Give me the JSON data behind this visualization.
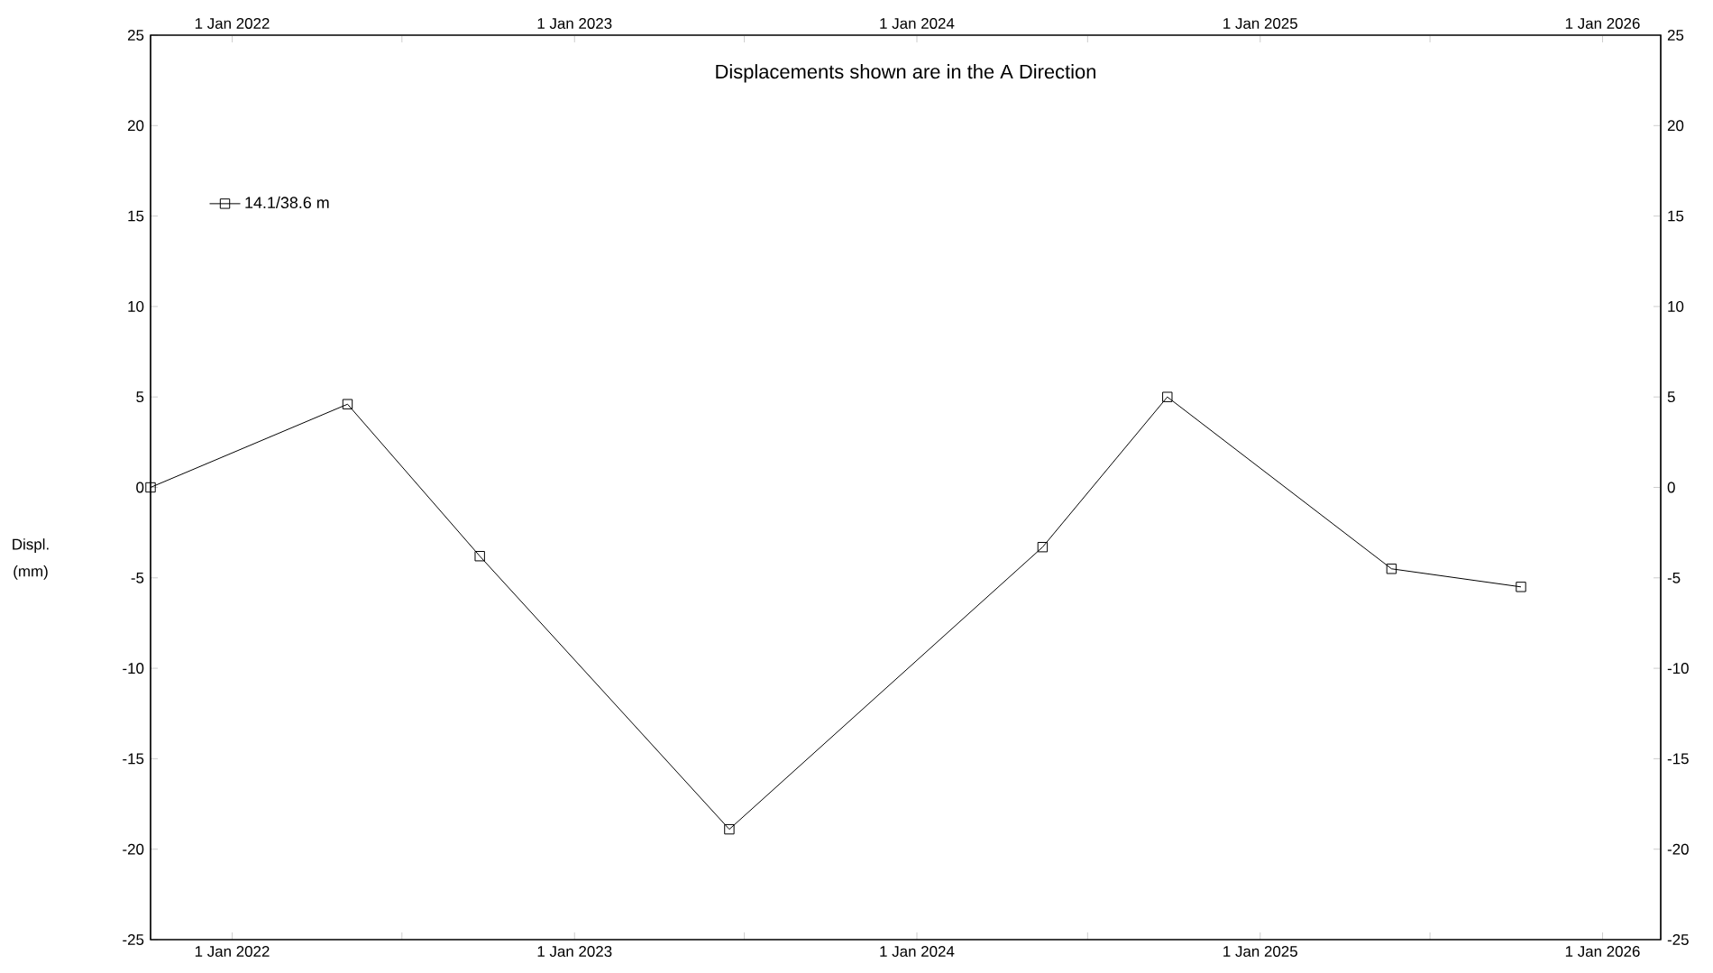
{
  "chart_data": {
    "type": "line",
    "title": "Displacements shown are in the  A Direction",
    "ylabel": "Displ. (mm)",
    "x": [
      "2021-10-06",
      "2022-05-04",
      "2022-09-22",
      "2023-06-15",
      "2024-05-14",
      "2024-09-24",
      "2025-05-21",
      "2025-10-06"
    ],
    "series": [
      {
        "name": "14.1/38.6 m",
        "color": "#000000",
        "values": [
          0,
          4.6,
          -3.8,
          -18.9,
          -3.3,
          5.0,
          -4.5,
          -5.5
        ]
      }
    ],
    "xlim": [
      "2021-10-06",
      "2026-03-04"
    ],
    "xticks": [
      {
        "value": "2022-01-01",
        "label": "1 Jan 2022"
      },
      {
        "value": "2022-07-01",
        "label": null
      },
      {
        "value": "2023-01-01",
        "label": "1 Jan 2023"
      },
      {
        "value": "2023-07-01",
        "label": null
      },
      {
        "value": "2024-01-01",
        "label": "1 Jan 2024"
      },
      {
        "value": "2024-07-01",
        "label": null
      },
      {
        "value": "2025-01-01",
        "label": "1 Jan 2025"
      },
      {
        "value": "2025-07-01",
        "label": null
      },
      {
        "value": "2026-01-01",
        "label": "1 Jan 2026"
      }
    ],
    "x2lim": [
      "2021-10-06",
      "2026-03-04"
    ],
    "x2ticks": [
      {
        "value": "2022-01-01",
        "label": "1 Jan 2022"
      },
      {
        "value": "2022-07-01",
        "label": null
      },
      {
        "value": "2023-01-01",
        "label": "1 Jan 2023"
      },
      {
        "value": "2023-07-01",
        "label": null
      },
      {
        "value": "2024-01-01",
        "label": "1 Jan 2024"
      },
      {
        "value": "2024-07-01",
        "label": null
      },
      {
        "value": "2025-01-01",
        "label": "1 Jan 2025"
      },
      {
        "value": "2025-07-01",
        "label": null
      },
      {
        "value": "2026-01-01",
        "label": "1 Jan 2026"
      }
    ],
    "ylim": [
      -25,
      25
    ],
    "yticks": [
      -25,
      -20,
      -15,
      -10,
      -5,
      0,
      5,
      10,
      15,
      20,
      25
    ],
    "y2lim": [
      -25,
      25
    ],
    "y2ticks": [
      -25,
      -20,
      -15,
      -10,
      -5,
      0,
      5,
      10,
      15,
      20,
      25
    ],
    "legend": "top left",
    "marker": "square",
    "line_style": "solid",
    "grid": false
  }
}
